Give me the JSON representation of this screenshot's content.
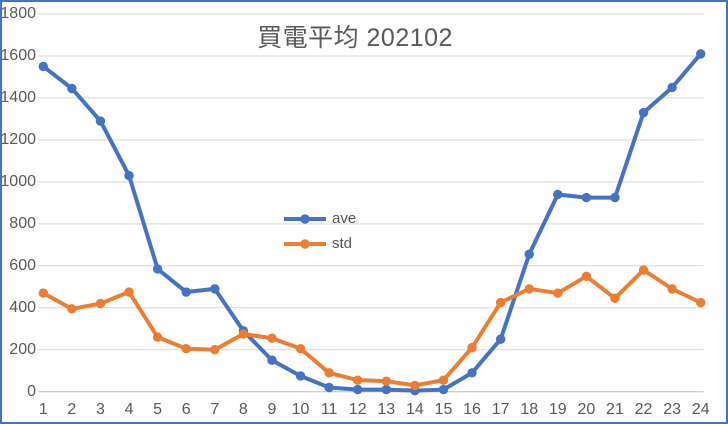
{
  "chart": {
    "title": "買電平均 202102",
    "legend": {
      "items": [
        {
          "label": "ave",
          "color": "#4472C4"
        },
        {
          "label": "std",
          "color": "#ED7D31"
        }
      ],
      "position": "floating-left-center"
    }
  },
  "chart_data": {
    "type": "line",
    "title": "買電平均 202102",
    "x": [
      1,
      2,
      3,
      4,
      5,
      6,
      7,
      8,
      9,
      10,
      11,
      12,
      13,
      14,
      15,
      16,
      17,
      18,
      19,
      20,
      21,
      22,
      23,
      24
    ],
    "series": [
      {
        "name": "ave",
        "color": "#4472C4",
        "marker": "circle",
        "values": [
          1550,
          1445,
          1290,
          1030,
          585,
          475,
          490,
          290,
          150,
          75,
          20,
          10,
          10,
          5,
          10,
          90,
          250,
          655,
          940,
          925,
          925,
          1330,
          1450,
          1610
        ]
      },
      {
        "name": "std",
        "color": "#ED7D31",
        "marker": "circle",
        "values": [
          470,
          395,
          420,
          475,
          260,
          205,
          200,
          275,
          255,
          205,
          90,
          55,
          50,
          30,
          55,
          210,
          425,
          490,
          470,
          550,
          445,
          580,
          490,
          425
        ]
      }
    ],
    "xlabel": "",
    "ylabel": "",
    "ylim": [
      0,
      1800
    ],
    "ytick_interval": 200,
    "yticks": [
      0,
      200,
      400,
      600,
      800,
      1000,
      1200,
      1400,
      1600,
      1800
    ],
    "grid": true,
    "legend_position": "inside-center-left",
    "colors": {
      "gridline": "#D9D9D9",
      "axis_line": "#BFBFBF",
      "text": "#595959",
      "chart_border": "#4472C4",
      "background": "#FFFFFF"
    }
  }
}
